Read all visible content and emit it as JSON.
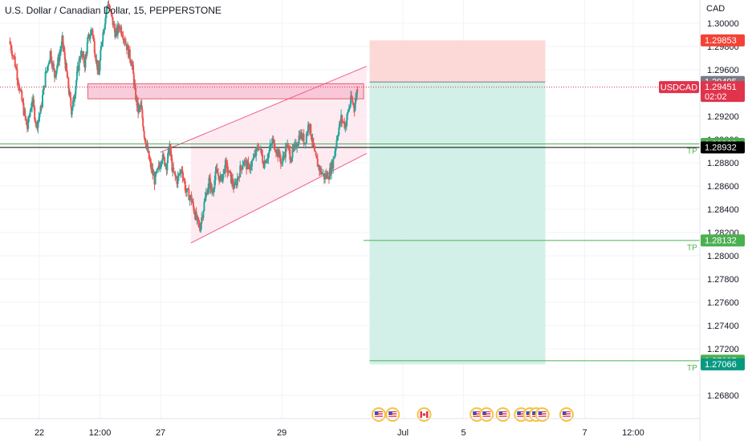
{
  "header": {
    "title": "U.S. Dollar / Canadian Dollar, 15, PEPPERSTONE",
    "currency": "CAD"
  },
  "colors": {
    "up": "#26a69a",
    "down": "#ef5350",
    "grid": "#f0f3fa",
    "axis_text": "#131722",
    "channel_line": "#f05b8b",
    "channel_fill": "#fde7ef",
    "zone_fill": "#f8bbd0",
    "zone_border": "#e0334c",
    "stop_fill": "#fcd5d2",
    "target_fill": "#cdeee6",
    "tp_line": "#4caf50",
    "black_line": "#000000",
    "price_line": "#e0334c"
  },
  "chart_data": {
    "type": "candlestick",
    "symbol": "USDCAD",
    "timeframe": "15",
    "y_axis": {
      "min": 1.266,
      "max": 1.302,
      "ticks": [
        "1.30000",
        "1.29800",
        "1.29600",
        "1.29200",
        "1.29000",
        "1.28800",
        "1.28600",
        "1.28400",
        "1.28200",
        "1.28000",
        "1.27800",
        "1.27600",
        "1.27400",
        "1.27200",
        "1.26800"
      ]
    },
    "x_axis": {
      "ticks": [
        {
          "label": "22",
          "t": 0.5
        },
        {
          "label": "12:00",
          "t": 1.5
        },
        {
          "label": "27",
          "t": 2.5
        },
        {
          "label": "29",
          "t": 4.5
        },
        {
          "label": "Jul",
          "t": 6.5
        },
        {
          "label": "5",
          "t": 7.5
        },
        {
          "label": "7",
          "t": 9.5
        },
        {
          "label": "12:00",
          "t": 10.3
        }
      ]
    },
    "x_range": [
      -0.15,
      11.4
    ],
    "price_path": [
      [
        0,
        1.2985
      ],
      [
        0.08,
        1.297
      ],
      [
        0.17,
        1.2945
      ],
      [
        0.24,
        1.2925
      ],
      [
        0.3,
        1.291
      ],
      [
        0.38,
        1.2935
      ],
      [
        0.45,
        1.2912
      ],
      [
        0.52,
        1.2925
      ],
      [
        0.6,
        1.2955
      ],
      [
        0.68,
        1.2975
      ],
      [
        0.75,
        1.2955
      ],
      [
        0.82,
        1.297
      ],
      [
        0.88,
        1.2985
      ],
      [
        0.93,
        1.2965
      ],
      [
        0.98,
        1.2945
      ],
      [
        1.03,
        1.2925
      ],
      [
        1.07,
        1.2935
      ],
      [
        1.12,
        1.2955
      ],
      [
        1.18,
        1.2975
      ],
      [
        1.25,
        1.2965
      ],
      [
        1.3,
        1.2985
      ],
      [
        1.37,
        1.2995
      ],
      [
        1.42,
        1.2975
      ],
      [
        1.48,
        1.2955
      ],
      [
        1.53,
        1.2985
      ],
      [
        1.58,
        1.3002
      ],
      [
        1.63,
        1.3018
      ],
      [
        1.7,
        1.3003
      ],
      [
        1.76,
        1.299
      ],
      [
        1.82,
        1.2998
      ],
      [
        1.9,
        1.2988
      ],
      [
        1.97,
        1.2975
      ],
      [
        2.03,
        1.2965
      ],
      [
        2.08,
        1.294
      ],
      [
        2.13,
        1.2925
      ],
      [
        2.18,
        1.2928
      ],
      [
        2.23,
        1.2905
      ],
      [
        2.28,
        1.2892
      ],
      [
        2.33,
        1.2878
      ],
      [
        2.4,
        1.2865
      ],
      [
        2.47,
        1.2875
      ],
      [
        2.52,
        1.2885
      ],
      [
        2.6,
        1.2878
      ],
      [
        2.65,
        1.2895
      ],
      [
        2.7,
        1.2872
      ],
      [
        2.77,
        1.2865
      ],
      [
        2.85,
        1.2875
      ],
      [
        2.92,
        1.2855
      ],
      [
        3.0,
        1.285
      ],
      [
        3.05,
        1.284
      ],
      [
        3.1,
        1.283
      ],
      [
        3.15,
        1.2825
      ],
      [
        3.22,
        1.2845
      ],
      [
        3.3,
        1.2865
      ],
      [
        3.35,
        1.2855
      ],
      [
        3.42,
        1.2872
      ],
      [
        3.5,
        1.2865
      ],
      [
        3.57,
        1.2878
      ],
      [
        3.65,
        1.2868
      ],
      [
        3.72,
        1.2858
      ],
      [
        3.8,
        1.2872
      ],
      [
        3.87,
        1.2882
      ],
      [
        3.95,
        1.2875
      ],
      [
        4.05,
        1.2885
      ],
      [
        4.12,
        1.2895
      ],
      [
        4.2,
        1.288
      ],
      [
        4.28,
        1.2888
      ],
      [
        4.35,
        1.2899
      ],
      [
        4.42,
        1.289
      ],
      [
        4.5,
        1.288
      ],
      [
        4.58,
        1.2895
      ],
      [
        4.65,
        1.2885
      ],
      [
        4.72,
        1.2893
      ],
      [
        4.8,
        1.2905
      ],
      [
        4.88,
        1.2898
      ],
      [
        4.95,
        1.2915
      ],
      [
        5.0,
        1.29
      ],
      [
        5.05,
        1.2885
      ],
      [
        5.12,
        1.2875
      ],
      [
        5.2,
        1.2868
      ],
      [
        5.28,
        1.287
      ],
      [
        5.35,
        1.2882
      ],
      [
        5.42,
        1.2905
      ],
      [
        5.48,
        1.2918
      ],
      [
        5.55,
        1.2912
      ],
      [
        5.6,
        1.2925
      ],
      [
        5.65,
        1.2935
      ],
      [
        5.7,
        1.2928
      ],
      [
        5.75,
        1.2945
      ]
    ],
    "annotations": {
      "resistance_zone": {
        "t0": 1.3,
        "t1": 5.85,
        "p0": 1.2935,
        "p1": 1.2948
      },
      "channel_upper": {
        "t0": 3.0,
        "p0": 1.29,
        "t1": 5.9,
        "p1": 1.2963
      },
      "channel_lower": {
        "t0": 3.0,
        "p0": 1.2811,
        "t1": 5.9,
        "p1": 1.2888
      },
      "position": {
        "t0": 5.95,
        "t1": 8.85,
        "stop": 1.29853,
        "entry": 1.29495,
        "target": 1.27066
      },
      "tp_levels": [
        {
          "price": 1.28962,
          "label": "TP",
          "t0": -0.15,
          "t1": 11.4
        },
        {
          "price": 1.28132,
          "label": "TP",
          "t0": 5.85,
          "t1": 11.4
        },
        {
          "price": 1.27097,
          "label": "TP",
          "t0": 5.95,
          "t1": 11.4
        }
      ],
      "black_line": {
        "price": 1.28932
      },
      "current_price_line": {
        "price": 1.29451
      }
    },
    "price_labels": [
      {
        "price": 1.29853,
        "text": "1.29853",
        "bg": "#f44336",
        "fg": "#ffffff"
      },
      {
        "price": 1.29495,
        "text": "1.29495",
        "bg": "#787b86",
        "fg": "#ffffff"
      },
      {
        "price": 1.29451,
        "text": "1.29451",
        "bg": "#e0334c",
        "fg": "#ffffff",
        "sub": "02:02"
      },
      {
        "price": 1.28962,
        "text": "1.28962",
        "bg": "#4caf50",
        "fg": "#ffffff"
      },
      {
        "price": 1.28932,
        "text": "1.28932",
        "bg": "#000000",
        "fg": "#ffffff"
      },
      {
        "price": 1.28132,
        "text": "1.28132",
        "bg": "#4caf50",
        "fg": "#ffffff"
      },
      {
        "price": 1.27097,
        "text": "1.27097",
        "bg": "#4caf50",
        "fg": "#ffffff"
      },
      {
        "price": 1.27066,
        "text": "1.27066",
        "bg": "#089981",
        "fg": "#ffffff"
      }
    ],
    "symbol_tag": {
      "text": "USDCAD",
      "price": 1.29451,
      "bg": "#e0334c"
    },
    "event_icons": [
      {
        "t": 6.1,
        "icon": "us-flag-icon"
      },
      {
        "t": 6.33,
        "icon": "us-flag-icon"
      },
      {
        "t": 6.85,
        "icon": "ca-flag-icon"
      },
      {
        "t": 7.72,
        "icon": "us-flag-icon"
      },
      {
        "t": 7.88,
        "icon": "us-flag-icon"
      },
      {
        "t": 8.15,
        "icon": "us-flag-icon"
      },
      {
        "t": 8.45,
        "icon": "us-flag-icon"
      },
      {
        "t": 8.6,
        "icon": "us-flag-icon"
      },
      {
        "t": 8.7,
        "icon": "us-flag-icon"
      },
      {
        "t": 8.8,
        "icon": "us-flag-icon"
      },
      {
        "t": 9.2,
        "icon": "us-flag-icon"
      }
    ]
  }
}
